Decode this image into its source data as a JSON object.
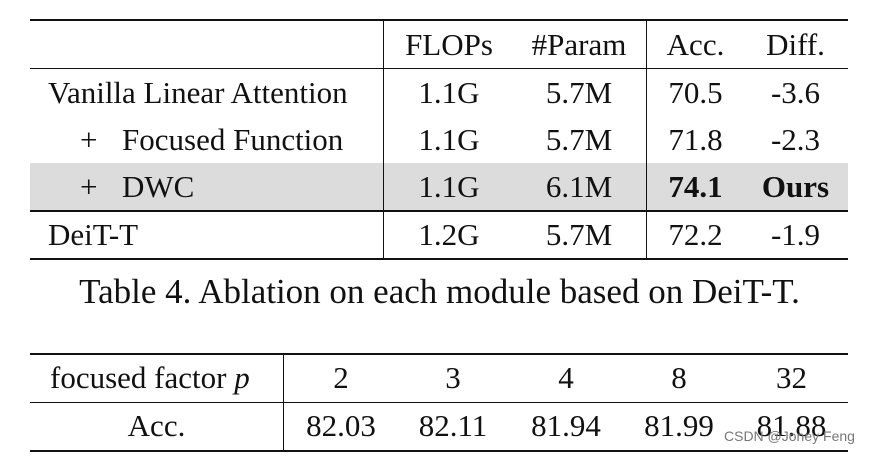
{
  "table4": {
    "headers": [
      "",
      "FLOPs",
      "#Param",
      "Acc.",
      "Diff."
    ],
    "rows": [
      [
        "Vanilla Linear Attention",
        "1.1G",
        "5.7M",
        "70.5",
        "-3.6"
      ],
      [
        "+",
        "Focused Function",
        "1.1G",
        "5.7M",
        "71.8",
        "-2.3"
      ],
      [
        "+",
        "DWC",
        "1.1G",
        "6.1M",
        "74.1",
        "Ours"
      ],
      [
        "DeiT-T",
        "1.2G",
        "5.7M",
        "72.2",
        "-1.9"
      ]
    ],
    "highlight_row_index": 2,
    "caption": "Table 4. Ablation on each module based on DeiT-T."
  },
  "table5": {
    "header_label": "focused factor",
    "header_var": "p",
    "header_values": [
      "2",
      "3",
      "4",
      "8",
      "32"
    ],
    "row_label": "Acc.",
    "row_values": [
      "82.03",
      "82.11",
      "81.94",
      "81.99",
      "81.88"
    ]
  },
  "watermark": "CSDN @Joney Feng"
}
